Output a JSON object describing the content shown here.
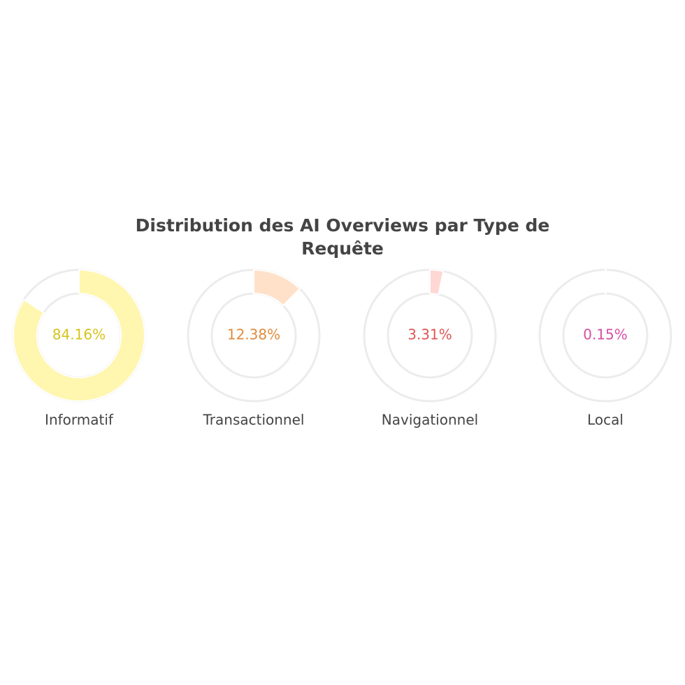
{
  "chart_data": {
    "type": "donut",
    "title": "Distribution des AI Overviews par Type de Requête",
    "categories": [
      "Informatif",
      "Transactionnel",
      "Navigationnel",
      "Local"
    ],
    "values": [
      84.16,
      12.38,
      3.31,
      0.15
    ],
    "value_labels": [
      "84.16%",
      "12.38%",
      "3.31%",
      "0.15%"
    ],
    "colors": [
      "#fff6b0",
      "#ffe1c9",
      "#ffd7d3",
      "#f9d3ea"
    ],
    "label_colors": [
      "#d6c31c",
      "#e08c3c",
      "#e05656",
      "#d650a4"
    ],
    "ylim": [
      0,
      100
    ]
  }
}
